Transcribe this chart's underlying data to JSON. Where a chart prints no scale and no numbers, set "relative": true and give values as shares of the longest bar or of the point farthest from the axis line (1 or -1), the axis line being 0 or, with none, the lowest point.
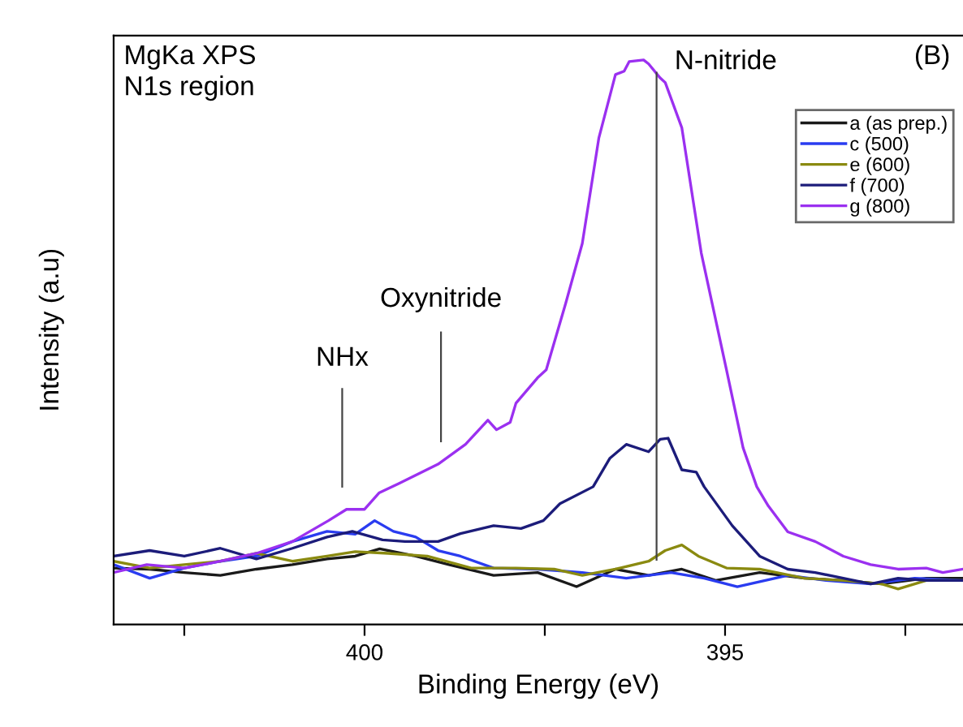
{
  "chart_data": {
    "type": "line",
    "relative": true,
    "xlabel": "Binding Energy (eV)",
    "ylabel": "Intensity (a.u)",
    "xlim": [
      403.48,
      391.7
    ],
    "xticks": [
      {
        "value": 402.5,
        "label": null
      },
      400,
      {
        "value": 397.5,
        "label": null
      },
      395,
      {
        "value": 392.5,
        "label": null
      }
    ],
    "legend": "top right",
    "line_style": "solid",
    "marker": "none",
    "grid": false,
    "annotations": [
      "MgKa XPS\nN1s region",
      "(B)"
    ],
    "ref_lines": [
      {
        "axis": "x",
        "value": 400.31,
        "label": "NHx",
        "color": "#444444"
      },
      {
        "axis": "x",
        "value": 398.94,
        "label": "Oxynitride",
        "color": "#444444"
      },
      {
        "axis": "x",
        "value": 395.95,
        "label": "N-nitride",
        "color": "#444444"
      }
    ],
    "series": [
      {
        "name": "a (as prep.)",
        "color": "#1a1a1a",
        "x": [
          403.48,
          402.98,
          402.5,
          402.0,
          401.5,
          401.0,
          400.52,
          400.13,
          399.79,
          399.29,
          398.83,
          398.21,
          397.6,
          397.06,
          396.52,
          396.06,
          395.6,
          395.13,
          394.52,
          393.9,
          393.36,
          392.83,
          392.21,
          391.71
        ],
        "values": [
          0.1,
          0.098,
          0.092,
          0.087,
          0.098,
          0.106,
          0.116,
          0.121,
          0.134,
          0.121,
          0.106,
          0.087,
          0.092,
          0.067,
          0.098,
          0.087,
          0.098,
          0.078,
          0.092,
          0.082,
          0.078,
          0.072,
          0.082,
          0.082
        ]
      },
      {
        "name": "c (500)",
        "color": "#2a3cf0",
        "x": [
          403.48,
          402.98,
          402.5,
          402.0,
          401.5,
          401.0,
          400.52,
          400.13,
          399.86,
          399.6,
          399.29,
          398.98,
          398.67,
          398.21,
          397.6,
          396.98,
          396.37,
          395.75,
          395.29,
          394.83,
          394.13,
          393.6,
          392.98,
          392.37,
          391.71
        ],
        "values": [
          0.106,
          0.082,
          0.1,
          0.112,
          0.121,
          0.147,
          0.165,
          0.16,
          0.184,
          0.165,
          0.155,
          0.131,
          0.121,
          0.1,
          0.098,
          0.092,
          0.082,
          0.092,
          0.082,
          0.067,
          0.087,
          0.078,
          0.072,
          0.082,
          0.078
        ]
      },
      {
        "name": "e (600)",
        "color": "#8a8a10",
        "x": [
          403.48,
          402.98,
          402.5,
          402.0,
          401.5,
          401.0,
          400.52,
          400.13,
          399.67,
          399.13,
          398.52,
          397.9,
          397.37,
          396.98,
          396.52,
          396.06,
          395.83,
          395.6,
          395.37,
          394.98,
          394.52,
          393.9,
          393.36,
          392.83,
          392.6,
          392.21,
          391.71
        ],
        "values": [
          0.112,
          0.1,
          0.106,
          0.112,
          0.126,
          0.112,
          0.121,
          0.129,
          0.126,
          0.121,
          0.1,
          0.1,
          0.098,
          0.087,
          0.098,
          0.112,
          0.131,
          0.141,
          0.121,
          0.1,
          0.098,
          0.082,
          0.078,
          0.072,
          0.063,
          0.078,
          0.078
        ]
      },
      {
        "name": "f (700)",
        "color": "#1c1c7a",
        "x": [
          403.48,
          402.98,
          402.5,
          402.0,
          401.5,
          401.0,
          400.52,
          400.17,
          399.75,
          399.44,
          398.98,
          398.67,
          398.21,
          397.83,
          397.52,
          397.29,
          396.83,
          396.6,
          396.37,
          396.06,
          395.9,
          395.79,
          395.6,
          395.4,
          395.29,
          394.9,
          394.52,
          394.13,
          393.75,
          393.36,
          392.98,
          392.6,
          392.21,
          391.71
        ],
        "values": [
          0.121,
          0.131,
          0.121,
          0.135,
          0.116,
          0.135,
          0.155,
          0.165,
          0.15,
          0.147,
          0.147,
          0.161,
          0.175,
          0.17,
          0.184,
          0.214,
          0.244,
          0.294,
          0.319,
          0.306,
          0.328,
          0.33,
          0.274,
          0.27,
          0.244,
          0.175,
          0.121,
          0.098,
          0.092,
          0.082,
          0.072,
          0.082,
          0.078,
          0.078
        ]
      },
      {
        "name": "g (800)",
        "color": "#9b30f0",
        "x": [
          403.48,
          403.02,
          402.5,
          402.0,
          401.5,
          401.0,
          400.5,
          400.25,
          400.0,
          399.8,
          399.52,
          398.98,
          398.6,
          398.29,
          398.17,
          397.98,
          397.9,
          397.6,
          397.48,
          397.21,
          396.98,
          396.75,
          396.52,
          396.4,
          396.33,
          396.13,
          396.06,
          395.9,
          395.83,
          395.6,
          395.33,
          394.98,
          394.75,
          394.56,
          394.4,
          394.13,
          393.75,
          393.36,
          392.98,
          392.6,
          392.21,
          391.98,
          391.71
        ],
        "values": [
          0.092,
          0.106,
          0.1,
          0.112,
          0.126,
          0.147,
          0.184,
          0.204,
          0.204,
          0.233,
          0.25,
          0.284,
          0.319,
          0.362,
          0.345,
          0.358,
          0.392,
          0.437,
          0.451,
          0.569,
          0.675,
          0.862,
          0.974,
          0.98,
          0.997,
          1.0,
          0.993,
          0.968,
          0.96,
          0.88,
          0.658,
          0.451,
          0.313,
          0.244,
          0.21,
          0.164,
          0.147,
          0.121,
          0.106,
          0.098,
          0.1,
          0.092,
          0.098
        ]
      }
    ]
  }
}
